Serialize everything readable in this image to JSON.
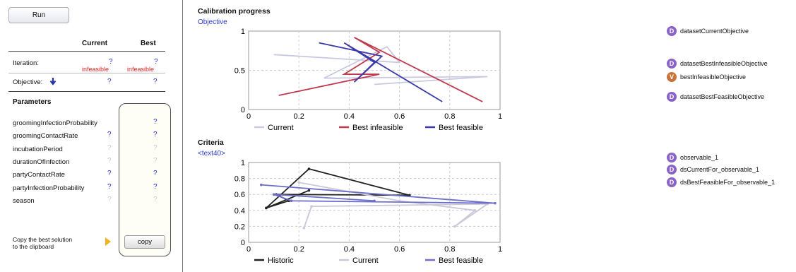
{
  "toolbar": {
    "run_label": "Run"
  },
  "table": {
    "col_current": "Current",
    "col_best": "Best",
    "iteration_label": "Iteration:",
    "iteration_current": "?",
    "iteration_best": "?",
    "iteration_current_status": "infeasible",
    "iteration_best_status": "infeasible",
    "objective_label": "Objective:",
    "objective_current": "?",
    "objective_best": "?",
    "parameters_heading": "Parameters",
    "parameters": [
      {
        "name": "groomingInfectionProbability",
        "current": "",
        "best": "?"
      },
      {
        "name": "groomingContactRate",
        "current": "?",
        "best": "?"
      },
      {
        "name": "incubationPeriod",
        "current": "?",
        "best": "?"
      },
      {
        "name": "durationOfInfection",
        "current": "?",
        "best": "?"
      },
      {
        "name": "partyContactRate",
        "current": "?",
        "best": "?"
      },
      {
        "name": "partyInfectionProbability",
        "current": "?",
        "best": "?"
      },
      {
        "name": "season",
        "current": "?",
        "best": "?"
      }
    ]
  },
  "copy": {
    "text_line1": "Copy the best solution",
    "text_line2": "to the clipboard",
    "button_label": "copy"
  },
  "charts": {
    "progress_title": "Calibration progress",
    "progress_subtitle": "Objective",
    "criteria_title": "Criteria",
    "criteria_subtitle": "<text40>"
  },
  "chart_data": [
    {
      "type": "line",
      "title": "Calibration progress",
      "subtitle": "Objective",
      "xlim": [
        0,
        1
      ],
      "ylim": [
        0,
        1
      ],
      "xticks": [
        "0",
        "0.2",
        "0.4",
        "0.6",
        "0.8",
        "1"
      ],
      "yticks": [
        "0",
        "0.5",
        "1"
      ],
      "grid": true,
      "legend": "bottom",
      "series": [
        {
          "name": "Current",
          "color": "#c9c9e2",
          "points": [
            [
              0.1,
              0.7
            ],
            [
              0.6,
              0.6
            ],
            [
              0.55,
              0.8
            ],
            [
              0.3,
              0.4
            ],
            [
              0.95,
              0.42
            ],
            [
              0.5,
              0.32
            ]
          ]
        },
        {
          "name": "Best infeasible",
          "color": "#c0394d",
          "points": [
            [
              0.12,
              0.18
            ],
            [
              0.52,
              0.45
            ],
            [
              0.38,
              0.45
            ],
            [
              0.52,
              0.73
            ],
            [
              0.42,
              0.92
            ],
            [
              0.93,
              0.1
            ]
          ]
        },
        {
          "name": "Best feasible",
          "color": "#3a3aa8",
          "points": [
            [
              0.28,
              0.85
            ],
            [
              0.53,
              0.68
            ],
            [
              0.42,
              0.35
            ],
            [
              0.5,
              0.6
            ],
            [
              0.38,
              0.85
            ],
            [
              0.77,
              0.1
            ]
          ]
        }
      ]
    },
    {
      "type": "line",
      "title": "Criteria",
      "subtitle": "<text40>",
      "xlim": [
        0,
        1
      ],
      "ylim": [
        0,
        1
      ],
      "xticks": [
        "0",
        "0.2",
        "0.4",
        "0.6",
        "0.8",
        "1"
      ],
      "yticks": [
        "0",
        "0.2",
        "0.4",
        "0.6",
        "0.8",
        "1"
      ],
      "grid": true,
      "legend": "bottom",
      "series": [
        {
          "name": "Historic",
          "color": "#222222",
          "points": [
            [
              0.07,
              0.43
            ],
            [
              0.24,
              0.92
            ],
            [
              0.64,
              0.59
            ],
            [
              0.11,
              0.6
            ],
            [
              0.16,
              0.52
            ],
            [
              0.07,
              0.43
            ],
            [
              0.24,
              0.65
            ]
          ]
        },
        {
          "name": "Current",
          "color": "#c9c9d9",
          "points": [
            [
              0.2,
              0.75
            ],
            [
              0.6,
              0.52
            ],
            [
              0.9,
              0.4
            ],
            [
              0.82,
              0.2
            ],
            [
              0.95,
              0.48
            ],
            [
              0.25,
              0.45
            ],
            [
              0.22,
              0.18
            ]
          ]
        },
        {
          "name": "Best feasible",
          "color": "#6d6dcc",
          "points": [
            [
              0.05,
              0.72
            ],
            [
              0.98,
              0.49
            ],
            [
              0.17,
              0.52
            ],
            [
              0.1,
              0.6
            ],
            [
              0.5,
              0.52
            ]
          ]
        }
      ]
    }
  ],
  "nodes": [
    {
      "badge": "D",
      "label": "datasetCurrentObjective",
      "color": "#8a63c9"
    },
    {
      "badge": "D",
      "label": "datasetBestInfeasibleObjective",
      "color": "#8a63c9"
    },
    {
      "badge": "V",
      "label": "bestInfeasibleObjective",
      "color": "#c8733a"
    },
    {
      "badge": "D",
      "label": "datasetBestFeasibleObjective",
      "color": "#8a63c9"
    },
    {
      "badge": "D",
      "label": "observable_1",
      "color": "#8a63c9"
    },
    {
      "badge": "D",
      "label": "dsCurrentFor_observable_1",
      "color": "#8a63c9"
    },
    {
      "badge": "D",
      "label": "dsBestFeasibleFor_observable_1",
      "color": "#8a63c9"
    }
  ]
}
